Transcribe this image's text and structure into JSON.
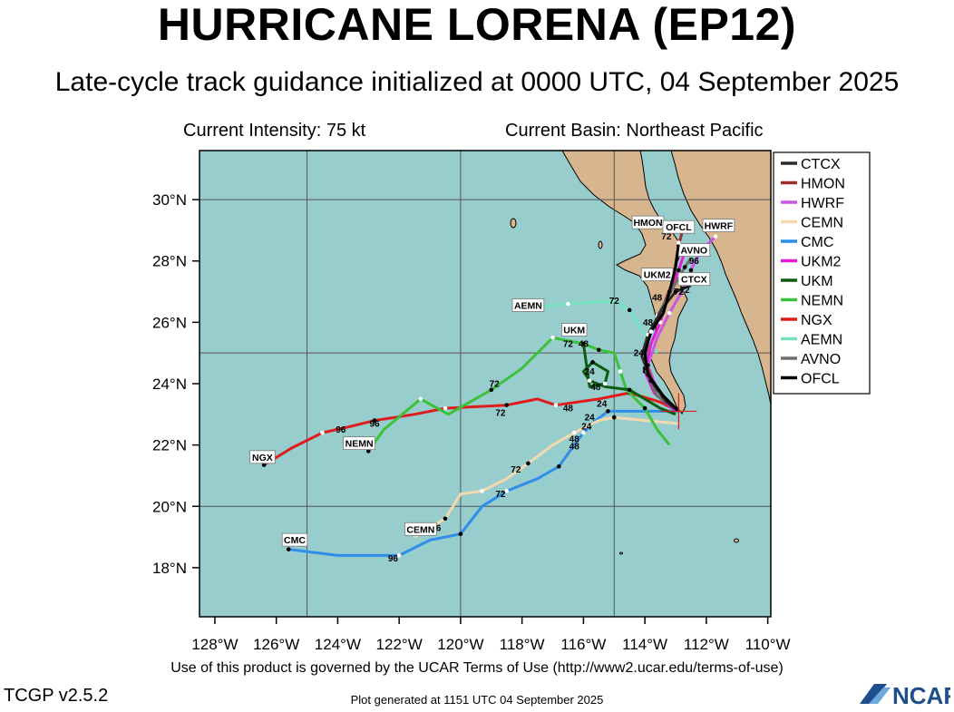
{
  "header": {
    "title": "HURRICANE LORENA (EP12)",
    "subtitle": "Late-cycle track guidance initialized at 0000 UTC, 04 September 2025",
    "intensity": "Current Intensity: 75 kt",
    "basin": "Current Basin: Northeast Pacific"
  },
  "footer": {
    "terms": "Use of this product is governed by the UCAR Terms of Use (http://www2.ucar.edu/terms-of-use)",
    "version": "TCGP v2.5.2",
    "generated": "Plot generated at 1151 UTC   04 September 2025",
    "logo_text": "NCAR"
  },
  "map": {
    "lon_range": [
      -128.5,
      -109.9
    ],
    "lat_range": [
      16.4,
      31.6
    ],
    "lon_ticks": [
      {
        "v": -128,
        "label": "128°W"
      },
      {
        "v": -126,
        "label": "126°W"
      },
      {
        "v": -124,
        "label": "124°W"
      },
      {
        "v": -122,
        "label": "122°W"
      },
      {
        "v": -120,
        "label": "120°W"
      },
      {
        "v": -118,
        "label": "118°W"
      },
      {
        "v": -116,
        "label": "116°W"
      },
      {
        "v": -114,
        "label": "114°W"
      },
      {
        "v": -112,
        "label": "112°W"
      },
      {
        "v": -110,
        "label": "110°W"
      }
    ],
    "lat_ticks": [
      {
        "v": 18,
        "label": "18°N"
      },
      {
        "v": 20,
        "label": "20°N"
      },
      {
        "v": 22,
        "label": "22°N"
      },
      {
        "v": 24,
        "label": "24°N"
      },
      {
        "v": 26,
        "label": "26°N"
      },
      {
        "v": 28,
        "label": "28°N"
      },
      {
        "v": 30,
        "label": "30°N"
      }
    ],
    "grid_lons": [
      -125,
      -120,
      -115
    ],
    "grid_lats": [
      20,
      25,
      30
    ],
    "ocean_color": "#98cdcd",
    "land_color": "#d7b58e",
    "storm_position": {
      "lon": -112.9,
      "lat": 23.1
    }
  },
  "legend": {
    "placement": "right",
    "items": [
      {
        "name": "CTCX",
        "color": "#2b2b2b"
      },
      {
        "name": "HMON",
        "color": "#9b2d2d"
      },
      {
        "name": "HWRF",
        "color": "#c956e6"
      },
      {
        "name": "CEMN",
        "color": "#f2d9b0"
      },
      {
        "name": "CMC",
        "color": "#2f8ee8"
      },
      {
        "name": "UKM2",
        "color": "#e51bd9"
      },
      {
        "name": "UKM",
        "color": "#0d5c0d"
      },
      {
        "name": "NEMN",
        "color": "#3ac23a"
      },
      {
        "name": "NGX",
        "color": "#e01b1b"
      },
      {
        "name": "AEMN",
        "color": "#76e2c2"
      },
      {
        "name": "AVNO",
        "color": "#6e6e6e"
      },
      {
        "name": "OFCL",
        "color": "#000000"
      }
    ]
  },
  "tracks": [
    {
      "name": "NGX",
      "color": "#e01b1b",
      "points": [
        [
          -112.9,
          23.1
        ],
        [
          -113.5,
          23.4
        ],
        [
          -114.5,
          23.7
        ],
        [
          -115.5,
          23.5
        ],
        [
          -116.9,
          23.3
        ],
        [
          -117.5,
          23.5
        ],
        [
          -118.5,
          23.3
        ],
        [
          -119.5,
          23.25
        ],
        [
          -120.5,
          23.2
        ],
        [
          -121.5,
          23.0
        ],
        [
          -122.8,
          22.8
        ],
        [
          -123.6,
          22.6
        ],
        [
          -124.5,
          22.4
        ],
        [
          -125.5,
          21.9
        ],
        [
          -126.4,
          21.35
        ]
      ],
      "labels": [
        {
          "t": "24",
          "lon": -115.4,
          "lat": 23.25
        },
        {
          "t": "48",
          "lon": -116.5,
          "lat": 23.1
        },
        {
          "t": "72",
          "lon": -118.7,
          "lat": 22.95
        },
        {
          "t": "96",
          "lon": -123.9,
          "lat": 22.4
        },
        {
          "t": "96",
          "lon": -122.8,
          "lat": 22.6
        }
      ],
      "tag": {
        "text": "NGX",
        "lon": -126.45,
        "lat": 21.55
      }
    },
    {
      "name": "CMC",
      "color": "#2f8ee8",
      "points": [
        [
          -112.9,
          23.1
        ],
        [
          -113.8,
          23.1
        ],
        [
          -115.2,
          23.1
        ],
        [
          -115.6,
          22.8
        ],
        [
          -116.0,
          22.4
        ],
        [
          -116.3,
          22.0
        ],
        [
          -116.8,
          21.3
        ],
        [
          -117.5,
          20.9
        ],
        [
          -118.5,
          20.5
        ],
        [
          -119.3,
          20.0
        ],
        [
          -120.0,
          19.1
        ],
        [
          -121.0,
          18.9
        ],
        [
          -122.0,
          18.4
        ],
        [
          -124.0,
          18.4
        ],
        [
          -125.6,
          18.6
        ]
      ],
      "labels": [
        {
          "t": "24",
          "lon": -115.8,
          "lat": 22.8
        },
        {
          "t": "48",
          "lon": -116.3,
          "lat": 22.1
        },
        {
          "t": "72",
          "lon": -118.7,
          "lat": 20.3
        },
        {
          "t": "96",
          "lon": -122.2,
          "lat": 18.2
        }
      ],
      "tag": {
        "text": "CMC",
        "lon": -125.4,
        "lat": 18.85
      }
    },
    {
      "name": "CEMN",
      "color": "#f2d9b0",
      "points": [
        [
          -112.9,
          22.7
        ],
        [
          -114.0,
          22.8
        ],
        [
          -115.0,
          22.9
        ],
        [
          -115.5,
          22.8
        ],
        [
          -116.3,
          22.4
        ],
        [
          -117.0,
          22.0
        ],
        [
          -117.8,
          21.4
        ],
        [
          -118.5,
          20.9
        ],
        [
          -119.3,
          20.5
        ],
        [
          -120.0,
          20.4
        ],
        [
          -120.5,
          19.6
        ],
        [
          -121.5,
          19.0
        ]
      ],
      "labels": [
        {
          "t": "24",
          "lon": -115.9,
          "lat": 22.5
        },
        {
          "t": "48",
          "lon": -116.3,
          "lat": 21.85
        },
        {
          "t": "72",
          "lon": -118.2,
          "lat": 21.1
        },
        {
          "t": "96",
          "lon": -120.8,
          "lat": 19.2
        }
      ],
      "tag": {
        "text": "CEMN",
        "lon": -121.3,
        "lat": 19.2
      }
    },
    {
      "name": "NEMN",
      "color": "#3ac23a",
      "points": [
        [
          -113.2,
          22.0
        ],
        [
          -113.6,
          22.5
        ],
        [
          -114.0,
          23.2
        ],
        [
          -114.6,
          23.8
        ],
        [
          -114.8,
          24.4
        ],
        [
          -115.0,
          25.0
        ],
        [
          -115.5,
          25.1
        ],
        [
          -116.0,
          25.3
        ],
        [
          -117.0,
          25.5
        ],
        [
          -118.0,
          24.5
        ],
        [
          -119.0,
          23.8
        ],
        [
          -120.4,
          23.0
        ],
        [
          -121.3,
          23.5
        ],
        [
          -122.5,
          22.5
        ],
        [
          -123.0,
          21.8
        ]
      ],
      "labels": [
        {
          "t": "72",
          "lon": -118.9,
          "lat": 23.9
        }
      ],
      "tag": {
        "text": "NEMN",
        "lon": -123.3,
        "lat": 22.0
      }
    },
    {
      "name": "UKM",
      "color": "#0d5c0d",
      "points": [
        [
          -113.0,
          23.0
        ],
        [
          -113.5,
          23.2
        ],
        [
          -114.5,
          23.8
        ],
        [
          -115.3,
          23.9
        ],
        [
          -115.8,
          24.1
        ],
        [
          -116.0,
          24.4
        ],
        [
          -115.7,
          24.7
        ],
        [
          -115.2,
          24.4
        ],
        [
          -115.3,
          24.0
        ],
        [
          -115.8,
          23.9
        ],
        [
          -116.0,
          25.3
        ]
      ],
      "labels": [
        {
          "t": "24",
          "lon": -115.8,
          "lat": 24.3
        },
        {
          "t": "48",
          "lon": -115.6,
          "lat": 23.8
        },
        {
          "t": "72",
          "lon": -116.5,
          "lat": 25.2
        },
        {
          "t": "48",
          "lon": -116.0,
          "lat": 25.2
        }
      ],
      "tag": {
        "text": "UKM",
        "lon": -116.3,
        "lat": 25.7
      }
    },
    {
      "name": "AEMN",
      "color": "#76e2c2",
      "points": [
        [
          -113.6,
          25.0
        ],
        [
          -114.0,
          25.6
        ],
        [
          -114.5,
          26.4
        ],
        [
          -115.0,
          26.7
        ],
        [
          -116.5,
          26.6
        ],
        [
          -117.5,
          26.5
        ]
      ],
      "labels": [
        {
          "t": "72",
          "lon": -115.0,
          "lat": 26.6
        }
      ],
      "tag": {
        "text": "AEMN",
        "lon": -117.8,
        "lat": 26.5
      }
    },
    {
      "name": "HWRF",
      "color": "#c956e6",
      "points": [
        [
          -112.9,
          23.1
        ],
        [
          -113.6,
          23.8
        ],
        [
          -113.9,
          24.6
        ],
        [
          -113.6,
          25.5
        ],
        [
          -113.2,
          26.3
        ],
        [
          -112.8,
          27.0
        ],
        [
          -112.5,
          27.7
        ],
        [
          -112.2,
          28.3
        ],
        [
          -111.7,
          28.8
        ]
      ],
      "labels": [],
      "tag": {
        "text": "HWRF",
        "lon": -111.6,
        "lat": 29.1
      }
    },
    {
      "name": "UKM2",
      "color": "#e51bd9",
      "points": [
        [
          -113.0,
          23.1
        ],
        [
          -113.7,
          23.7
        ],
        [
          -114.0,
          24.4
        ],
        [
          -113.8,
          25.3
        ],
        [
          -113.5,
          26.0
        ],
        [
          -113.3,
          26.8
        ],
        [
          -112.9,
          27.7
        ],
        [
          -112.7,
          28.3
        ]
      ],
      "labels": [
        {
          "t": "48",
          "lon": -113.6,
          "lat": 26.7
        }
      ],
      "tag": {
        "text": "UKM2",
        "lon": -113.6,
        "lat": 27.5
      }
    },
    {
      "name": "HMON",
      "color": "#9b2d2d",
      "points": [
        [
          -112.9,
          23.1
        ],
        [
          -113.7,
          23.9
        ],
        [
          -114.0,
          24.8
        ],
        [
          -113.9,
          25.6
        ],
        [
          -113.5,
          26.3
        ],
        [
          -113.1,
          27.3
        ],
        [
          -112.9,
          28.5
        ],
        [
          -112.8,
          28.9
        ]
      ],
      "labels": [
        {
          "t": "72",
          "lon": -113.3,
          "lat": 28.7
        }
      ],
      "tag": {
        "text": "HMON",
        "lon": -113.9,
        "lat": 29.2
      }
    },
    {
      "name": "AVNO",
      "color": "#6e6e6e",
      "points": [
        [
          -112.9,
          23.1
        ],
        [
          -113.6,
          23.6
        ],
        [
          -114.0,
          24.5
        ],
        [
          -113.9,
          25.4
        ],
        [
          -113.6,
          26.2
        ],
        [
          -113.1,
          27.1
        ],
        [
          -112.7,
          27.8
        ],
        [
          -112.5,
          28.1
        ]
      ],
      "labels": [
        {
          "t": "96",
          "lon": -112.4,
          "lat": 27.9
        }
      ],
      "tag": {
        "text": "AVNO",
        "lon": -112.4,
        "lat": 28.3
      }
    },
    {
      "name": "CTCX",
      "color": "#2b2b2b",
      "points": [
        [
          -112.9,
          23.1
        ],
        [
          -113.3,
          23.4
        ],
        [
          -113.8,
          24.1
        ],
        [
          -114.1,
          24.9
        ],
        [
          -113.9,
          25.6
        ],
        [
          -113.4,
          26.5
        ],
        [
          -113.0,
          27.0
        ],
        [
          -112.5,
          27.2
        ]
      ],
      "labels": [
        {
          "t": "72",
          "lon": -112.7,
          "lat": 26.95
        }
      ],
      "tag": {
        "text": "CTCX",
        "lon": -112.4,
        "lat": 27.35
      }
    },
    {
      "name": "OFCL",
      "color": "#000000",
      "points": [
        [
          -112.9,
          23.1
        ],
        [
          -113.4,
          23.6
        ],
        [
          -113.9,
          24.3
        ],
        [
          -114.0,
          25.0
        ],
        [
          -113.8,
          25.7
        ],
        [
          -113.4,
          26.3
        ],
        [
          -113.2,
          27.0
        ],
        [
          -113.0,
          27.8
        ],
        [
          -112.9,
          28.6
        ]
      ],
      "labels": [
        {
          "t": "24",
          "lon": -114.2,
          "lat": 24.9
        },
        {
          "t": "48",
          "lon": -113.9,
          "lat": 25.9
        },
        {
          "t": "72",
          "lon": -112.9,
          "lat": 26.9
        }
      ],
      "tag": {
        "text": "OFCL",
        "lon": -112.9,
        "lat": 29.05
      }
    }
  ]
}
